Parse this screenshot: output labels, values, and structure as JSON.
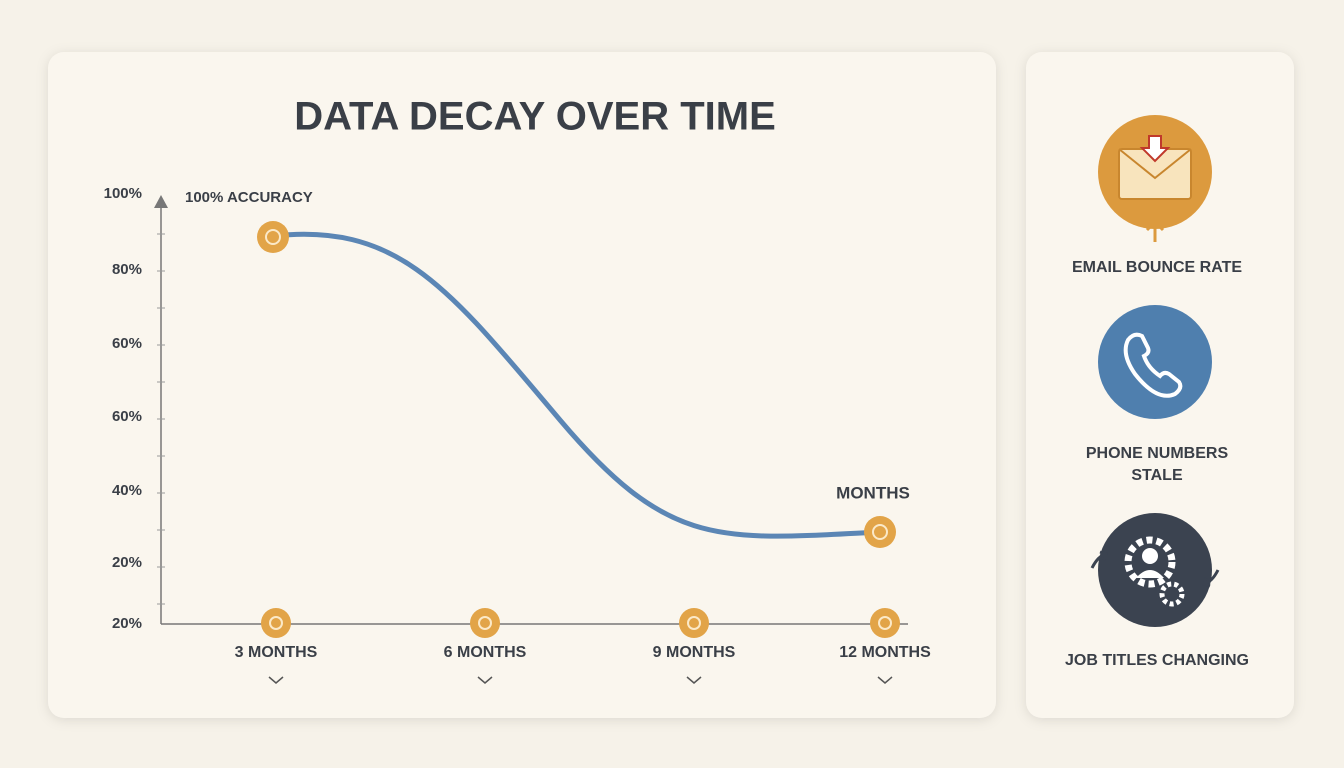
{
  "title": "DATA DECAY OVER TIME",
  "y_axis_labels": [
    "100%",
    "80%",
    "60%",
    "60%",
    "40%",
    "20%",
    "20%"
  ],
  "x_axis_labels": [
    "3 MONTHS",
    "6 MONTHS",
    "9 MONTHS",
    "12 MONTHS"
  ],
  "annotations": {
    "start": "100% ACCURACY",
    "end": "MONTHS"
  },
  "side_panel": [
    {
      "label": "EMAIL BOUNCE RATE"
    },
    {
      "label": "PHONE NUMBERS\nSTALE"
    },
    {
      "label": "JOB TITLES CHANGING"
    }
  ]
}
